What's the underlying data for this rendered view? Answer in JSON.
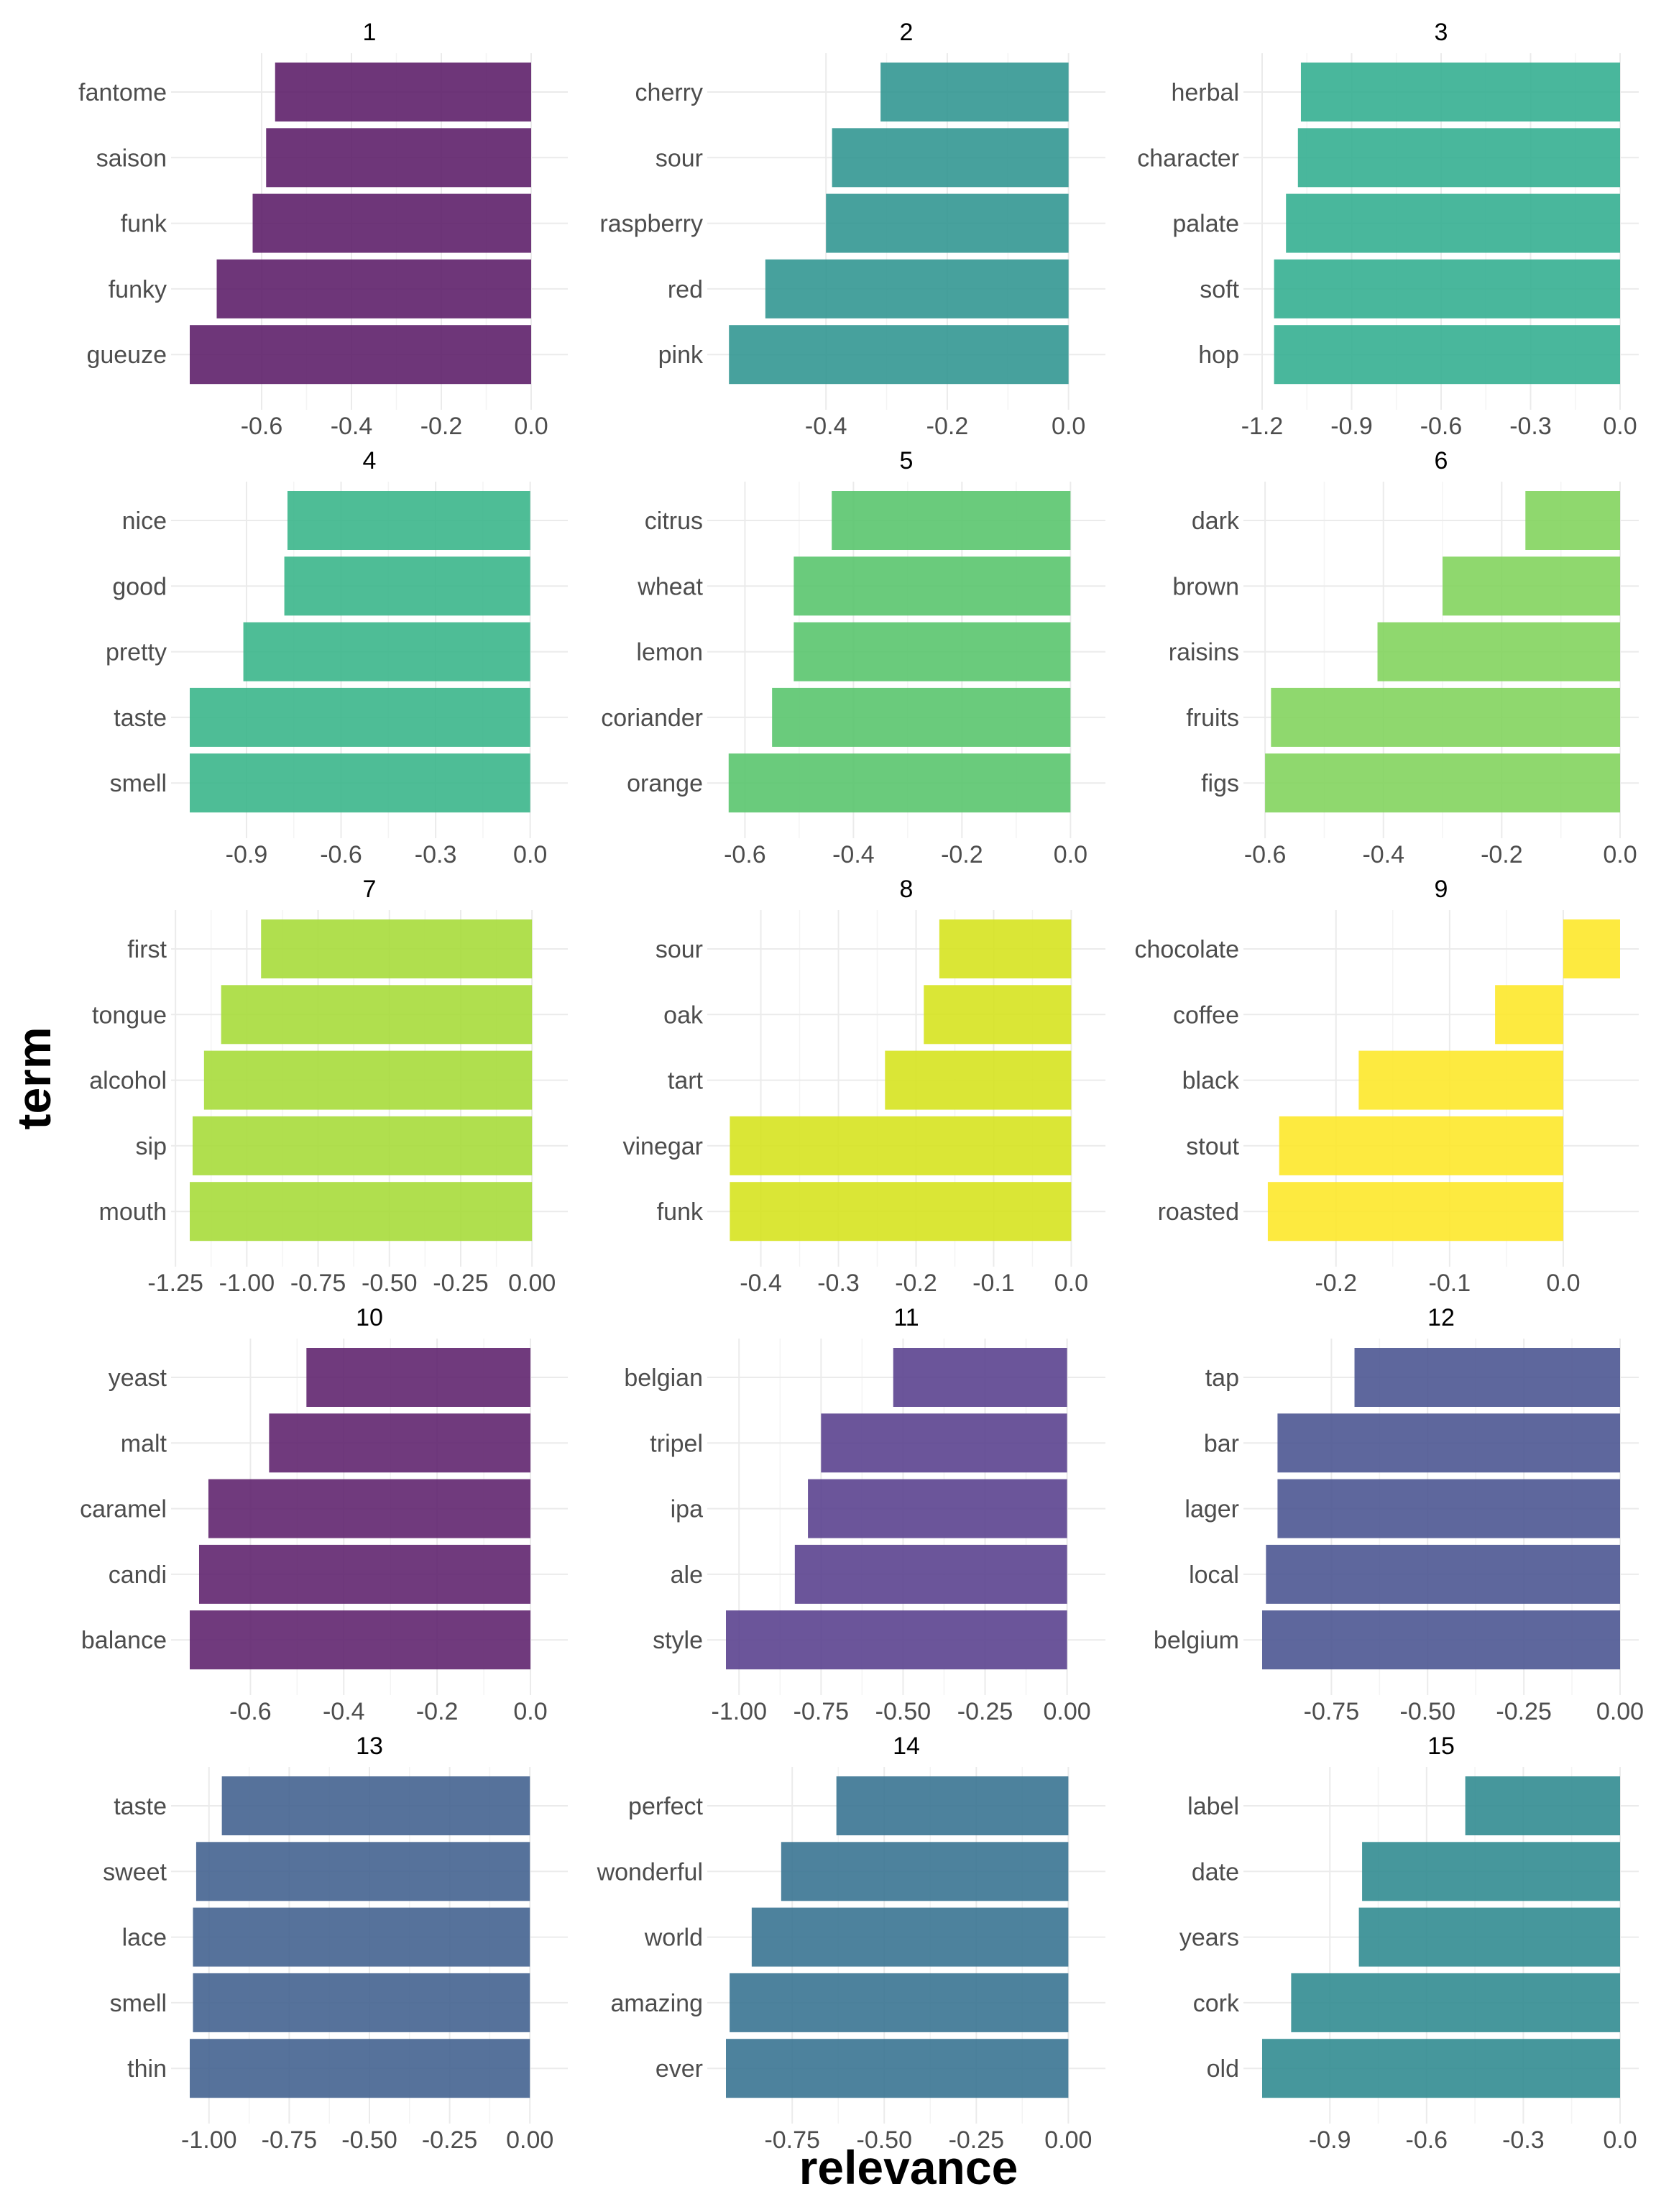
{
  "axis_titles": {
    "x": "relevance",
    "y": "term"
  },
  "chart_data": {
    "type": "bar",
    "orientation": "horizontal",
    "xlabel": "relevance",
    "ylabel": "term",
    "grid": true,
    "legend": "none",
    "facets": [
      {
        "title": "1",
        "color": "#5a1a66",
        "terms": [
          "fantome",
          "saison",
          "funk",
          "funky",
          "gueuze"
        ],
        "values": [
          -0.57,
          -0.59,
          -0.62,
          -0.7,
          -0.76
        ],
        "ticks": [
          "-0.6",
          "-0.4",
          "-0.2",
          "0.0"
        ],
        "tick_values": [
          -0.6,
          -0.4,
          -0.2,
          0.0
        ],
        "xlim": [
          -0.76,
          0.04
        ]
      },
      {
        "title": "2",
        "color": "#2e9490",
        "terms": [
          "cherry",
          "sour",
          "raspberry",
          "red",
          "pink"
        ],
        "values": [
          -0.31,
          -0.39,
          -0.4,
          -0.5,
          -0.56
        ],
        "ticks": [
          "-0.4",
          "-0.2",
          "0.0"
        ],
        "tick_values": [
          -0.4,
          -0.2,
          0.0
        ],
        "xlim": [
          -0.565,
          0.03
        ]
      },
      {
        "title": "3",
        "color": "#30ad8e",
        "terms": [
          "herbal",
          "character",
          "palate",
          "soft",
          "hop"
        ],
        "values": [
          -1.07,
          -1.08,
          -1.12,
          -1.16,
          -1.16
        ],
        "ticks": [
          "-1.2",
          "-0.9",
          "-0.6",
          "-0.3",
          "0.0"
        ],
        "tick_values": [
          -1.2,
          -0.9,
          -0.6,
          -0.3,
          0.0
        ],
        "xlim": [
          -1.2,
          0.0
        ]
      },
      {
        "title": "4",
        "color": "#36b488",
        "terms": [
          "nice",
          "good",
          "pretty",
          "taste",
          "smell"
        ],
        "values": [
          -0.77,
          -0.78,
          -0.91,
          -1.08,
          -1.08
        ],
        "ticks": [
          "-0.9",
          "-0.6",
          "-0.3",
          "0.0"
        ],
        "tick_values": [
          -0.9,
          -0.6,
          -0.3,
          0.0
        ],
        "xlim": [
          -1.08,
          0.06
        ]
      },
      {
        "title": "5",
        "color": "#55c46a",
        "terms": [
          "citrus",
          "wheat",
          "lemon",
          "coriander",
          "orange"
        ],
        "values": [
          -0.44,
          -0.51,
          -0.51,
          -0.55,
          -0.63
        ],
        "ticks": [
          "-0.6",
          "-0.4",
          "-0.2",
          "0.0"
        ],
        "tick_values": [
          -0.6,
          -0.4,
          -0.2,
          0.0
        ],
        "xlim": [
          -0.635,
          0.03
        ]
      },
      {
        "title": "6",
        "color": "#7fd35a",
        "terms": [
          "dark",
          "brown",
          "raisins",
          "fruits",
          "figs"
        ],
        "values": [
          -0.16,
          -0.3,
          -0.41,
          -0.59,
          -0.6
        ],
        "ticks": [
          "-0.6",
          "-0.4",
          "-0.2",
          "0.0"
        ],
        "tick_values": [
          -0.6,
          -0.4,
          -0.2,
          0.0
        ],
        "xlim": [
          -0.605,
          0.0
        ]
      },
      {
        "title": "7",
        "color": "#a5db36",
        "terms": [
          "first",
          "tongue",
          "alcohol",
          "sip",
          "mouth"
        ],
        "values": [
          -0.95,
          -1.09,
          -1.15,
          -1.19,
          -1.2
        ],
        "ticks": [
          "-1.25",
          "-1.00",
          "-0.75",
          "-0.50",
          "-0.25",
          "0.00"
        ],
        "tick_values": [
          -1.25,
          -1.0,
          -0.75,
          -0.5,
          -0.25,
          0.0
        ],
        "xlim": [
          -1.2,
          0.06
        ]
      },
      {
        "title": "8",
        "color": "#d5e21a",
        "terms": [
          "sour",
          "oak",
          "tart",
          "vinegar",
          "funk"
        ],
        "values": [
          -0.17,
          -0.19,
          -0.24,
          -0.44,
          -0.44
        ],
        "ticks": [
          "-0.4",
          "-0.3",
          "-0.2",
          "-0.1",
          "0.0"
        ],
        "tick_values": [
          -0.4,
          -0.3,
          -0.2,
          -0.1,
          0.0
        ],
        "xlim": [
          -0.445,
          0.02
        ]
      },
      {
        "title": "9",
        "color": "#fde725",
        "terms": [
          "chocolate",
          "coffee",
          "black",
          "stout",
          "roasted"
        ],
        "values": [
          0.05,
          -0.06,
          -0.18,
          -0.25,
          -0.26
        ],
        "ticks": [
          "-0.2",
          "-0.1",
          "0.0"
        ],
        "tick_values": [
          -0.2,
          -0.1,
          0.0
        ],
        "xlim": [
          -0.265,
          0.05
        ]
      },
      {
        "title": "10",
        "color": "#5c1f6b",
        "terms": [
          "yeast",
          "malt",
          "caramel",
          "candi",
          "balance"
        ],
        "values": [
          -0.48,
          -0.56,
          -0.69,
          -0.71,
          -0.73
        ],
        "ticks": [
          "-0.6",
          "-0.4",
          "-0.2",
          "0.0"
        ],
        "tick_values": [
          -0.6,
          -0.4,
          -0.2,
          0.0
        ],
        "xlim": [
          -0.73,
          0.04
        ]
      },
      {
        "title": "11",
        "color": "#563e8c",
        "terms": [
          "belgian",
          "tripel",
          "ipa",
          "ale",
          "style"
        ],
        "values": [
          -0.53,
          -0.75,
          -0.79,
          -0.83,
          -1.04
        ],
        "ticks": [
          "-1.00",
          "-0.75",
          "-0.50",
          "-0.25",
          "0.00"
        ],
        "tick_values": [
          -1.0,
          -0.75,
          -0.5,
          -0.25,
          0.0
        ],
        "xlim": [
          -1.04,
          0.06
        ]
      },
      {
        "title": "12",
        "color": "#48528f",
        "terms": [
          "tap",
          "bar",
          "lager",
          "local",
          "belgium"
        ],
        "values": [
          -0.69,
          -0.89,
          -0.89,
          -0.92,
          -0.93
        ],
        "ticks": [
          "-0.75",
          "-0.50",
          "-0.25",
          "0.00"
        ],
        "tick_values": [
          -0.75,
          -0.5,
          -0.25,
          0.0
        ],
        "xlim": [
          -0.93,
          0.0
        ]
      },
      {
        "title": "13",
        "color": "#3f5f8d",
        "terms": [
          "taste",
          "sweet",
          "lace",
          "smell",
          "thin"
        ],
        "values": [
          -0.96,
          -1.04,
          -1.05,
          -1.05,
          -1.06
        ],
        "ticks": [
          "-1.00",
          "-0.75",
          "-0.50",
          "-0.25",
          "0.00"
        ],
        "tick_values": [
          -1.0,
          -0.75,
          -0.5,
          -0.25,
          0.0
        ],
        "xlim": [
          -1.06,
          0.06
        ]
      },
      {
        "title": "14",
        "color": "#34718f",
        "terms": [
          "perfect",
          "wonderful",
          "world",
          "amazing",
          "ever"
        ],
        "values": [
          -0.63,
          -0.78,
          -0.86,
          -0.92,
          -0.93
        ],
        "ticks": [
          "-0.75",
          "-0.50",
          "-0.25",
          "0.00"
        ],
        "tick_values": [
          -0.75,
          -0.5,
          -0.25,
          0.0
        ],
        "xlim": [
          -0.93,
          0.05
        ]
      },
      {
        "title": "15",
        "color": "#2c898e",
        "terms": [
          "label",
          "date",
          "years",
          "cork",
          "old"
        ],
        "values": [
          -0.48,
          -0.8,
          -0.81,
          -1.02,
          -1.11
        ],
        "ticks": [
          "-0.9",
          "-0.6",
          "-0.3",
          "0.0"
        ],
        "tick_values": [
          -0.9,
          -0.6,
          -0.3,
          0.0
        ],
        "xlim": [
          -1.11,
          0.0
        ]
      }
    ]
  }
}
